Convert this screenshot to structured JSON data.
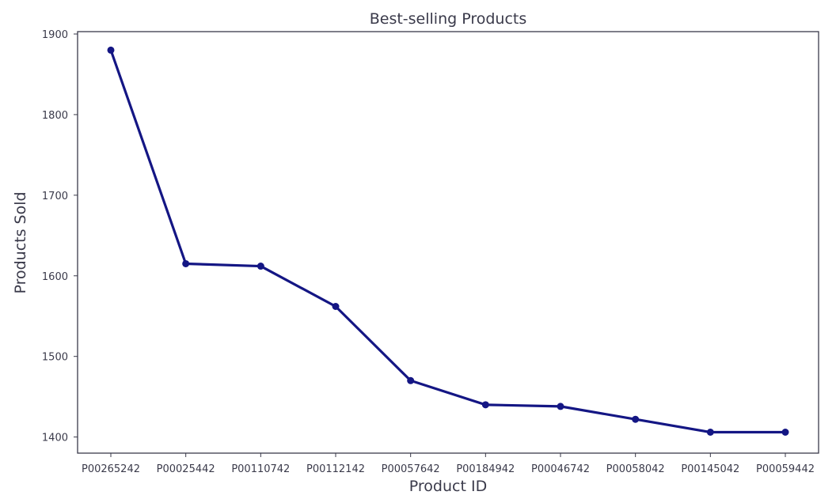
{
  "chart_data": {
    "type": "line",
    "title": "Best-selling Products",
    "xlabel": "Product ID",
    "ylabel": "Products Sold",
    "categories": [
      "P00265242",
      "P00025442",
      "P00110742",
      "P00112142",
      "P00057642",
      "P00184942",
      "P00046742",
      "P00058042",
      "P00145042",
      "P00059442"
    ],
    "series": [
      {
        "name": "Products Sold",
        "values": [
          1880,
          1615,
          1612,
          1562,
          1470,
          1440,
          1438,
          1422,
          1406,
          1406
        ]
      }
    ],
    "ylim": [
      1380,
      1900
    ],
    "yticks": [
      1400,
      1500,
      1600,
      1700,
      1800,
      1900
    ],
    "grid": false,
    "color": "#141684"
  }
}
